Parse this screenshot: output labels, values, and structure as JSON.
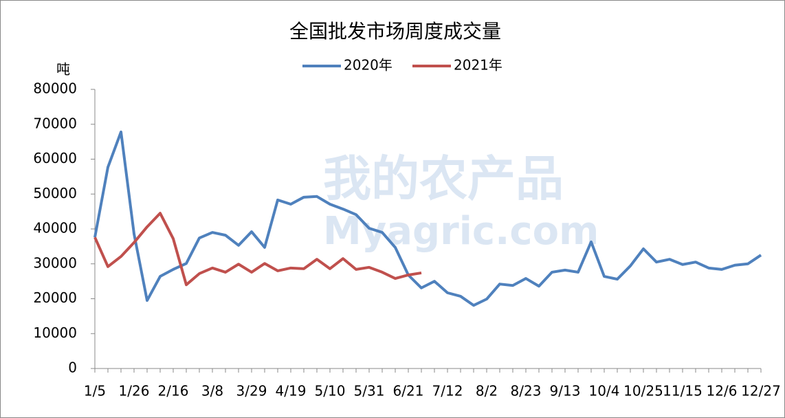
{
  "chart_data": {
    "type": "line",
    "title": "全国批发市场周度成交量",
    "y_label": "吨",
    "watermark": [
      "我的农产品",
      "Myagric.com"
    ],
    "categories": [
      "1/5",
      null,
      null,
      "1/26",
      null,
      null,
      "2/16",
      null,
      null,
      "3/8",
      null,
      null,
      "3/29",
      null,
      null,
      "4/19",
      null,
      null,
      "5/10",
      null,
      null,
      "5/31",
      null,
      null,
      "6/21",
      null,
      null,
      "7/12",
      null,
      null,
      "8/2",
      null,
      null,
      "8/23",
      null,
      null,
      "9/13",
      null,
      null,
      "10/4",
      null,
      null,
      "10/25",
      null,
      null,
      "11/15",
      null,
      null,
      "12/6",
      null,
      null,
      "12/27"
    ],
    "series": [
      {
        "name": "2020年",
        "color": "#4f81bd",
        "values": [
          37600,
          57700,
          67800,
          38600,
          19500,
          26400,
          28400,
          30100,
          37400,
          39000,
          38200,
          35300,
          39200,
          34700,
          48300,
          47100,
          49100,
          49300,
          47100,
          45700,
          44100,
          40200,
          39000,
          34700,
          26800,
          23100,
          25000,
          21700,
          20700,
          18100,
          19900,
          24200,
          23800,
          25800,
          23600,
          27600,
          28200,
          27600,
          36300,
          26400,
          25600,
          29400,
          34300,
          30500,
          31300,
          29800,
          30500,
          28800,
          28400,
          29600,
          30000,
          32500
        ]
      },
      {
        "name": "2021年",
        "color": "#c0504d",
        "values": [
          37600,
          29200,
          32100,
          36100,
          40600,
          44500,
          37200,
          24000,
          27200,
          28800,
          27600,
          29900,
          27600,
          30100,
          28000,
          28800,
          28600,
          31300,
          28600,
          31500,
          28400,
          29000,
          27600,
          25800,
          26800,
          27400,
          null,
          null,
          null,
          null,
          null,
          null,
          null,
          null,
          null,
          null,
          null,
          null,
          null,
          null,
          null,
          null,
          null,
          null,
          null,
          null,
          null,
          null,
          null,
          null,
          null,
          null
        ]
      }
    ],
    "ylim": [
      0,
      80000
    ],
    "yticks": [
      0,
      10000,
      20000,
      30000,
      40000,
      50000,
      60000,
      70000,
      80000
    ]
  }
}
